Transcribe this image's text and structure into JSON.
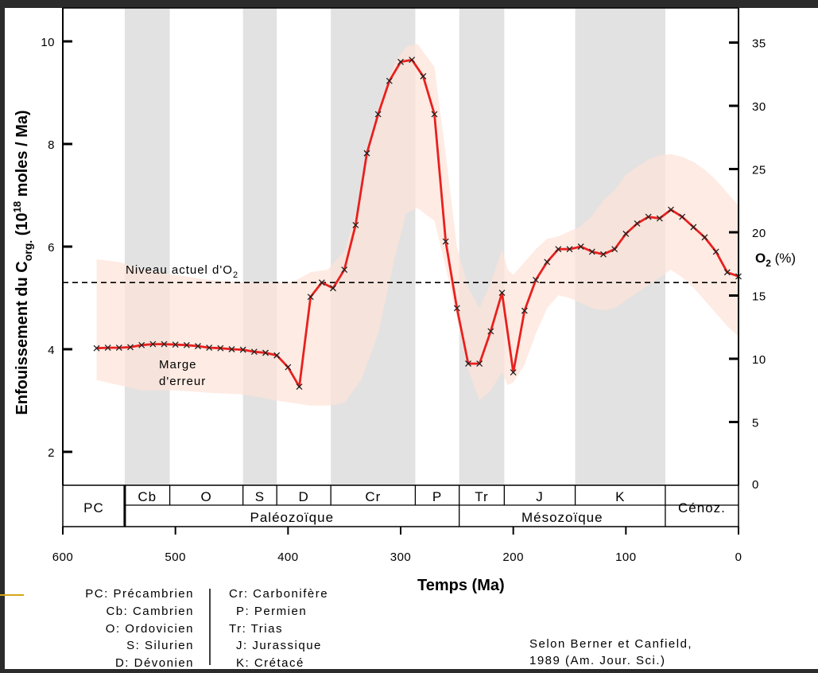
{
  "chart_data": {
    "type": "line",
    "title": "",
    "xlabel": "Temps (Ma)",
    "ylabel_prefix": "Enfouissement du C",
    "ylabel_sub": "org.",
    "ylabel_open": " (10",
    "ylabel_sup": "18",
    "ylabel_suffix": " moles / Ma)",
    "y2label_main": "O",
    "y2label_sub": "2",
    "y2label_suffix": " (%)",
    "xlim": [
      600,
      0
    ],
    "ylim": [
      1.3,
      10.7
    ],
    "y2lim": [
      0,
      38
    ],
    "x_ticks": [
      "600",
      "500",
      "400",
      "300",
      "200",
      "100",
      "0"
    ],
    "y_ticks": [
      "2",
      "4",
      "6",
      "8",
      "10"
    ],
    "y2_ticks": [
      "0",
      "5",
      "10",
      "15",
      "20",
      "25",
      "30",
      "35"
    ],
    "series": [
      {
        "color": "#e8201e",
        "x": [
          570,
          560,
          550,
          540,
          530,
          520,
          510,
          500,
          490,
          480,
          470,
          460,
          450,
          440,
          430,
          420,
          410,
          400,
          390,
          380,
          370,
          360,
          350,
          340,
          330,
          320,
          310,
          300,
          290,
          280,
          270,
          260,
          250,
          240,
          230,
          220,
          210,
          200,
          190,
          180,
          170,
          160,
          150,
          140,
          130,
          120,
          110,
          100,
          90,
          80,
          70,
          60,
          50,
          40,
          30,
          20,
          10,
          0
        ],
        "y": [
          4.02,
          4.03,
          4.03,
          4.04,
          4.08,
          4.1,
          4.1,
          4.09,
          4.08,
          4.06,
          4.03,
          4.02,
          4.0,
          3.99,
          3.95,
          3.93,
          3.88,
          3.65,
          3.27,
          5.02,
          5.3,
          5.19,
          5.55,
          6.42,
          7.82,
          8.58,
          9.23,
          9.6,
          9.64,
          9.32,
          8.58,
          6.1,
          4.8,
          3.72,
          3.72,
          4.35,
          5.1,
          3.55,
          4.75,
          5.35,
          5.7,
          5.95,
          5.95,
          6.0,
          5.9,
          5.85,
          5.95,
          6.25,
          6.45,
          6.58,
          6.55,
          6.72,
          6.58,
          6.38,
          6.18,
          5.9,
          5.5,
          5.42
        ]
      }
    ],
    "error_band": {
      "x": [
        570,
        550,
        530,
        500,
        470,
        440,
        410,
        395,
        380,
        365,
        350,
        335,
        320,
        305,
        295,
        285,
        270,
        260,
        250,
        240,
        230,
        220,
        210,
        205,
        200,
        190,
        180,
        170,
        160,
        150,
        140,
        130,
        120,
        110,
        100,
        90,
        80,
        70,
        60,
        50,
        40,
        30,
        20,
        10,
        0
      ],
      "upper": [
        5.75,
        5.7,
        5.55,
        5.45,
        5.35,
        5.3,
        5.3,
        5.32,
        5.5,
        5.55,
        5.9,
        7.0,
        8.7,
        9.6,
        9.9,
        9.95,
        9.5,
        7.8,
        6.0,
        5.2,
        4.8,
        5.3,
        5.95,
        5.55,
        5.45,
        5.7,
        5.95,
        6.15,
        6.2,
        6.3,
        6.4,
        6.6,
        6.9,
        7.1,
        7.4,
        7.55,
        7.7,
        7.78,
        7.8,
        7.75,
        7.65,
        7.5,
        7.3,
        7.05,
        6.8
      ],
      "lower": [
        3.4,
        3.3,
        3.2,
        3.2,
        3.15,
        3.12,
        3.0,
        2.95,
        2.9,
        2.9,
        2.95,
        3.4,
        4.3,
        5.8,
        6.65,
        6.75,
        6.5,
        5.6,
        4.6,
        3.6,
        3.0,
        3.2,
        3.55,
        3.3,
        3.35,
        3.7,
        4.3,
        4.8,
        5.05,
        5.0,
        4.9,
        4.8,
        4.75,
        4.8,
        4.95,
        5.1,
        5.25,
        5.4,
        5.55,
        5.4,
        5.2,
        4.95,
        4.7,
        4.45,
        4.25
      ],
      "color": "#fde3d8"
    },
    "reference_line": {
      "y": 5.3,
      "label_main": "Niveau actuel d'O",
      "label_sub": "2"
    },
    "error_label": [
      "Marge",
      "d'erreur"
    ],
    "shaded_periods": [
      [
        545,
        505
      ],
      [
        440,
        410
      ],
      [
        362,
        287
      ],
      [
        248,
        208
      ],
      [
        145,
        65
      ]
    ],
    "periods": [
      {
        "label": "PC",
        "from": 600,
        "to": 545
      },
      {
        "label": "Cb",
        "from": 545,
        "to": 505
      },
      {
        "label": "O",
        "from": 505,
        "to": 440
      },
      {
        "label": "S",
        "from": 440,
        "to": 410
      },
      {
        "label": "D",
        "from": 410,
        "to": 362
      },
      {
        "label": "Cr",
        "from": 362,
        "to": 287
      },
      {
        "label": "P",
        "from": 287,
        "to": 248
      },
      {
        "label": "Tr",
        "from": 248,
        "to": 208
      },
      {
        "label": "J",
        "from": 208,
        "to": 145
      },
      {
        "label": "K",
        "from": 145,
        "to": 65
      },
      {
        "label": "Cénoz.",
        "from": 65,
        "to": 0
      }
    ],
    "eras": [
      {
        "label": "Paléozoïque",
        "from": 545,
        "to": 248
      },
      {
        "label": "Mésozoïque",
        "from": 248,
        "to": 65
      }
    ],
    "legend_left": [
      "PC: Précambrien",
      "Cb: Cambrien",
      "O: Ordovicien",
      "S: Silurien",
      "D: Dévonien"
    ],
    "legend_right": [
      "Cr: Carbonifère",
      "P: Permien",
      "Tr: Trias",
      "J: Jurassique",
      "K: Crétacé"
    ],
    "credit": [
      "Selon Berner et Canfield,",
      "1989 (Am. Jour. Sci.)"
    ]
  },
  "colors": {
    "background": "#ffffff",
    "frame": "#2b2b2b",
    "stripe": "#e2e2e2",
    "line": "#e8201e",
    "band": "#fde3d8",
    "accent": "#d4a516"
  }
}
